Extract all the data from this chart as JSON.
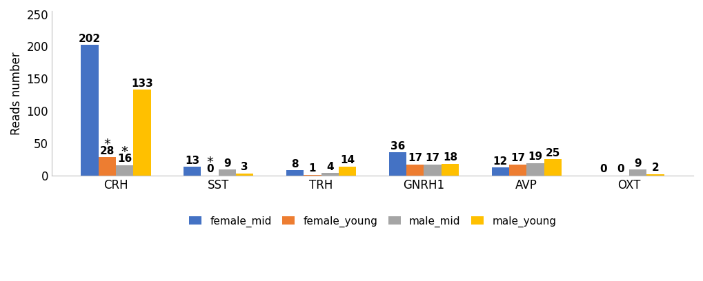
{
  "categories": [
    "CRH",
    "SST",
    "TRH",
    "GNRH1",
    "AVP",
    "OXT"
  ],
  "series": {
    "female_mid": [
      202,
      13,
      8,
      36,
      12,
      0
    ],
    "female_young": [
      28,
      0,
      1,
      17,
      17,
      0
    ],
    "male_mid": [
      16,
      9,
      4,
      17,
      19,
      9
    ],
    "male_young": [
      133,
      3,
      14,
      18,
      25,
      2
    ]
  },
  "colors": {
    "female_mid": "#4472C4",
    "female_young": "#ED7D31",
    "male_mid": "#A5A5A5",
    "male_young": "#FFC000"
  },
  "labels": [
    "female_mid",
    "female_young",
    "male_mid",
    "male_young"
  ],
  "ylabel": "Reads number",
  "ylim": [
    0,
    255
  ],
  "yticks": [
    0,
    50,
    100,
    150,
    200,
    250
  ],
  "bar_width": 0.17,
  "label_fontsize": 11,
  "tick_fontsize": 12,
  "ylabel_fontsize": 12,
  "legend_fontsize": 11,
  "asterisk_fontsize": 14,
  "asterisk": {
    "CRH": [
      "female_young",
      "male_mid"
    ],
    "SST": [
      "female_young"
    ]
  }
}
